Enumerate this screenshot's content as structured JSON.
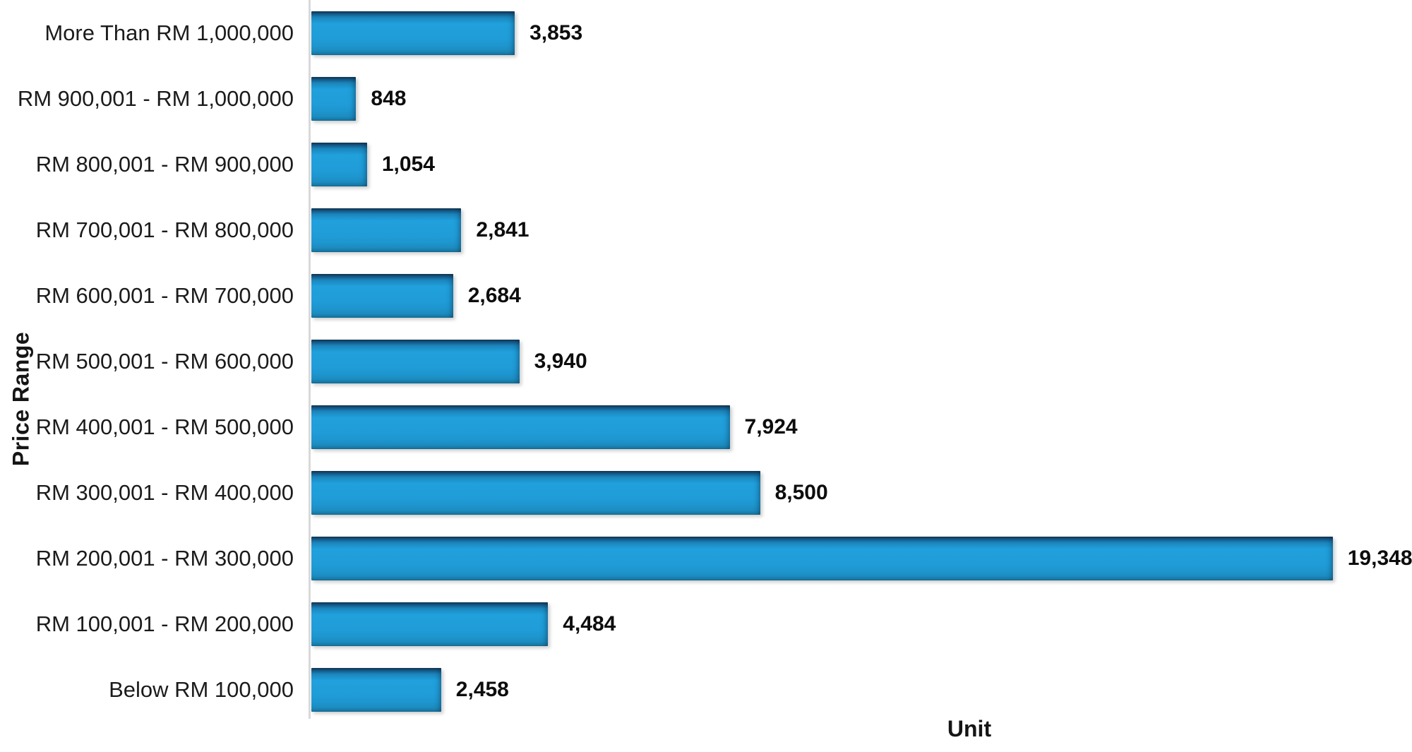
{
  "chart_data": {
    "type": "bar",
    "orientation": "horizontal",
    "title": "",
    "xlabel": "Unit",
    "ylabel": "Price Range",
    "xlim": [
      0,
      20850
    ],
    "grid": false,
    "legend": "none",
    "bar_color": "#1E9AD6",
    "bar_edge_top_color": "#10344C",
    "axis_line_color": "#D9D9D9",
    "categories": [
      "More Than RM 1,000,000",
      "RM 900,001 - RM 1,000,000",
      "RM 800,001 - RM 900,000",
      "RM 700,001 - RM 800,000",
      "RM 600,001 - RM 700,000",
      "RM 500,001 - RM 600,000",
      "RM 400,001 - RM 500,000",
      "RM 300,001 - RM 400,000",
      "RM 200,001 - RM 300,000",
      "RM 100,001 - RM 200,000",
      "Below RM 100,000"
    ],
    "values": [
      3853,
      848,
      1054,
      2841,
      2684,
      3940,
      7924,
      8500,
      19348,
      4484,
      2458
    ],
    "value_labels": [
      "3,853",
      "848",
      "1,054",
      "2,841",
      "2,684",
      "3,940",
      "7,924",
      "8,500",
      "19,348",
      "4,484",
      "2,458"
    ]
  }
}
